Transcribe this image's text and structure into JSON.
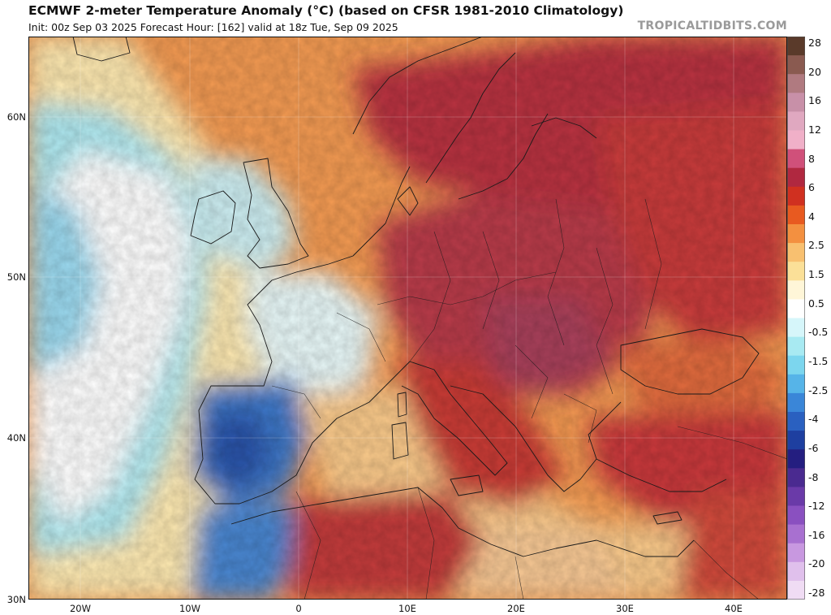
{
  "title": "ECMWF 2-meter Temperature Anomaly (°C) (based on CFSR 1981-2010 Climatology)",
  "subtitle": "Init: 00z Sep 03 2025   Forecast Hour: [162]   valid at 18z Tue, Sep 09 2025",
  "site": "TROPICALTIDBITS.COM",
  "lat_labels": [
    "60N",
    "50N",
    "40N",
    "30N"
  ],
  "lon_labels": [
    "20W",
    "10W",
    "0",
    "10E",
    "20E",
    "30E",
    "40E"
  ],
  "colorbar": {
    "labels": [
      "28",
      "20",
      "16",
      "12",
      "8",
      "6",
      "4",
      "2.5",
      "1.5",
      "0.5",
      "-0.5",
      "-1.5",
      "-2.5",
      "-4",
      "-6",
      "-8",
      "-12",
      "-16",
      "-20",
      "-28"
    ],
    "colors": [
      "#5a3a2a",
      "#8a5a50",
      "#b07a80",
      "#c890a8",
      "#e0a8c0",
      "#f0b0c8",
      "#d0507a",
      "#b02840",
      "#d03020",
      "#e85a20",
      "#f39040",
      "#f8c070",
      "#fbe098",
      "#fff6d8",
      "#ffffff",
      "#d6f6fa",
      "#a8eaf2",
      "#7cd6ee",
      "#56b4e8",
      "#3a86d8",
      "#2a60c0",
      "#1e3fa0",
      "#241e80",
      "#4a2a90",
      "#6a3aa8",
      "#8a50c0",
      "#a870d0",
      "#c898e0",
      "#e0c0ec",
      "#f0dcf4"
    ]
  }
}
